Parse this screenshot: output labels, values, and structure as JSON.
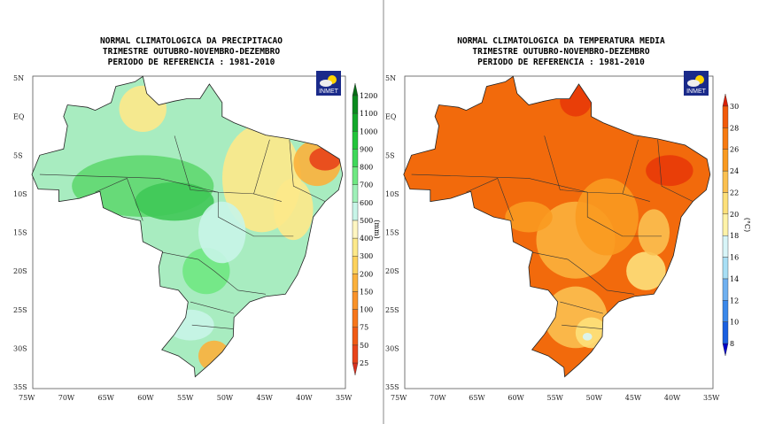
{
  "panels": [
    {
      "title": [
        "NORMAL CLIMATOLOGICA DA PRECIPITACAO",
        "TRIMESTRE OUTUBRO-NOVEMBRO-DEZEMBRO",
        "PERIODO DE REFERENCIA : 1981-2010"
      ],
      "unit": "(mm)",
      "logo": "INMET",
      "levels": [
        "25",
        "50",
        "75",
        "100",
        "150",
        "200",
        "300",
        "400",
        "500",
        "600",
        "700",
        "800",
        "900",
        "1000",
        "1100",
        "1200"
      ],
      "colors": [
        "#d7301f",
        "#e8441a",
        "#f05a14",
        "#f7761a",
        "#f99228",
        "#fbb13c",
        "#fdd25c",
        "#fde98a",
        "#fff6c2",
        "#c8f5e8",
        "#9ff0b8",
        "#6fe882",
        "#3fd85a",
        "#22c53a",
        "#12a82a",
        "#0a8a1e",
        "#056a14"
      ],
      "base": "#a8ecc0",
      "blobs": [
        [
          "#5fd870",
          -60,
          -9,
          9,
          4
        ],
        [
          "#3fc856",
          -56,
          -11,
          5,
          2.5
        ],
        [
          "#fde98a",
          -45,
          -8,
          5,
          7
        ],
        [
          "#fbb13c",
          -38,
          -6,
          3,
          3
        ],
        [
          "#e8441a",
          -37,
          -5.5,
          2,
          1.5
        ],
        [
          "#fde98a",
          -41,
          -12,
          2.5,
          4
        ],
        [
          "#fde98a",
          -60,
          1,
          3,
          3
        ],
        [
          "#fbb13c",
          -51,
          -31,
          2,
          2
        ],
        [
          "#6fe882",
          -52,
          -20,
          3,
          3
        ],
        [
          "#c8f5e8",
          -50,
          -15,
          3,
          4
        ],
        [
          "#c8f5e8",
          -54,
          -27,
          3,
          2
        ]
      ]
    },
    {
      "title": [
        "NORMAL CLIMATOLOGICA DA TEMPERATURA MEDIA",
        "TRIMESTRE OUTUBRO-NOVEMBRO-DEZEMBRO",
        "PERIODO DE REFERENCIA : 1981-2010"
      ],
      "unit": "(°C)",
      "logo": "INMET",
      "levels": [
        "8",
        "10",
        "12",
        "14",
        "16",
        "18",
        "20",
        "22",
        "24",
        "26",
        "28",
        "30"
      ],
      "colors": [
        "#0000c8",
        "#1a5fe0",
        "#3b88ea",
        "#6fb0f0",
        "#a8dff5",
        "#d8f5f8",
        "#fff3a8",
        "#fde07a",
        "#fbc050",
        "#f99a20",
        "#f77a10",
        "#f25a0a",
        "#d81e05"
      ],
      "base": "#f26a0c",
      "blobs": [
        [
          "#fbb13c",
          -52,
          -16,
          5,
          5
        ],
        [
          "#f99a20",
          -48,
          -13,
          4,
          5
        ],
        [
          "#fbc050",
          -52,
          -26,
          4,
          4
        ],
        [
          "#fde07a",
          -50,
          -28,
          2,
          2
        ],
        [
          "#fde07a",
          -43,
          -20,
          2.5,
          2.5
        ],
        [
          "#fbc050",
          -42,
          -15,
          2,
          3
        ],
        [
          "#e83a08",
          -40,
          -7,
          3,
          2
        ],
        [
          "#e83a08",
          -52,
          2,
          2,
          2
        ],
        [
          "#f99a20",
          -58,
          -13,
          3,
          2
        ],
        [
          "#d8f5f8",
          -50.5,
          -28.5,
          0.6,
          0.5
        ]
      ]
    }
  ],
  "axes": {
    "lon": [
      "75W",
      "70W",
      "65W",
      "60W",
      "55W",
      "50W",
      "45W",
      "40W",
      "35W"
    ],
    "lat": [
      "5N",
      "EQ",
      "5S",
      "10S",
      "15S",
      "20S",
      "25S",
      "30S",
      "35S"
    ]
  }
}
